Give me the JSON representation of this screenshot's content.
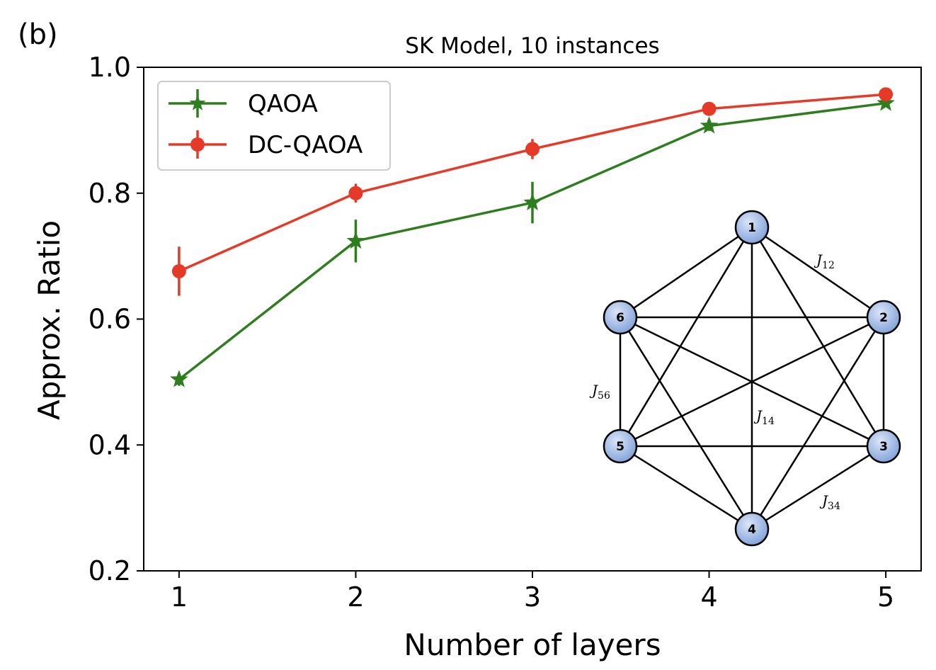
{
  "panel_label": "(b)",
  "chart_data": {
    "type": "line",
    "title": "SK Model, 10 instances",
    "xlabel": "Number of layers",
    "ylabel": "Approx. Ratio",
    "x": [
      1,
      2,
      3,
      4,
      5
    ],
    "xlim": [
      0.8,
      5.2
    ],
    "ylim": [
      0.2,
      1.0
    ],
    "xticks": [
      "1",
      "2",
      "3",
      "4",
      "5"
    ],
    "yticks": [
      "0.2",
      "0.4",
      "0.6",
      "0.8",
      "1.0"
    ],
    "legend_position": "top-left",
    "series": [
      {
        "name": "QAOA",
        "color": "#2e7d1e",
        "marker": "star",
        "values": [
          0.504,
          0.724,
          0.785,
          0.907,
          0.943
        ],
        "errors": [
          0.01,
          0.034,
          0.033,
          0.008,
          0.006
        ]
      },
      {
        "name": "DC-QAOA",
        "color": "#e53a28",
        "marker": "circle",
        "values": [
          0.676,
          0.8,
          0.87,
          0.934,
          0.957
        ],
        "errors": [
          0.039,
          0.015,
          0.016,
          0.006,
          0.005
        ]
      }
    ]
  },
  "inset_graph": {
    "nodes": [
      "1",
      "2",
      "3",
      "4",
      "5",
      "6"
    ],
    "edge_labels": [
      {
        "base": "J",
        "sub": "12"
      },
      {
        "base": "J",
        "sub": "56"
      },
      {
        "base": "J",
        "sub": "14"
      },
      {
        "base": "J",
        "sub": "34"
      }
    ]
  }
}
